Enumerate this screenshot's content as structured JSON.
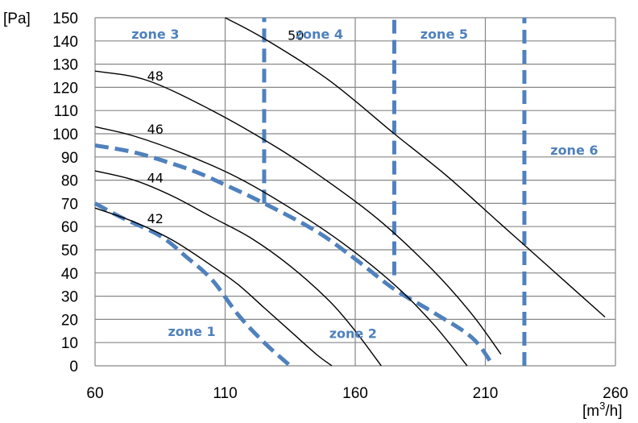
{
  "chart_data": {
    "type": "line",
    "title": "",
    "y_unit": "[Pa]",
    "x_unit": {
      "base": "[m",
      "sup": "3",
      "tail": "/h]"
    },
    "xlim": [
      60,
      260
    ],
    "ylim": [
      0,
      150
    ],
    "x_ticks": [
      60,
      110,
      160,
      210,
      260
    ],
    "y_ticks": [
      0,
      10,
      20,
      30,
      40,
      50,
      60,
      70,
      80,
      90,
      100,
      110,
      120,
      130,
      140,
      150
    ],
    "grid": true,
    "curve_color": "#000000",
    "zone_color": "#4f81bd",
    "series": [
      {
        "name": "42",
        "x": [
          60,
          75,
          90,
          105,
          115,
          125,
          135,
          145,
          151
        ],
        "y": [
          68,
          62,
          54,
          43,
          35,
          25,
          15,
          5,
          0
        ]
      },
      {
        "name": "44",
        "x": [
          60,
          75,
          90,
          105,
          120,
          135,
          150,
          160,
          170
        ],
        "y": [
          84,
          80,
          73,
          64,
          55,
          43,
          28,
          15,
          0
        ]
      },
      {
        "name": "46",
        "x": [
          60,
          75,
          95,
          115,
          135,
          155,
          175,
          190,
          203
        ],
        "y": [
          103,
          99,
          91,
          81,
          68,
          53,
          35,
          18,
          0
        ]
      },
      {
        "name": "48",
        "x": [
          60,
          80,
          105,
          130,
          150,
          170,
          190,
          205,
          216
        ],
        "y": [
          127,
          123,
          110,
          94,
          79,
          62,
          41,
          22,
          5
        ]
      },
      {
        "name": "50",
        "x": [
          110,
          125,
          150,
          175,
          195,
          215,
          235,
          256
        ],
        "y": [
          150,
          141,
          123,
          100,
          82,
          62,
          42,
          21
        ]
      }
    ],
    "boundaries": [
      {
        "name": "zone 1 boundary",
        "x": [
          60,
          70,
          85,
          95,
          105,
          115,
          125,
          135
        ],
        "y": [
          70,
          64,
          56,
          47,
          37,
          22,
          10,
          0
        ]
      },
      {
        "name": "zone 2 boundary",
        "x": [
          60,
          75,
          90,
          100,
          110,
          125,
          145,
          160,
          175,
          190,
          205,
          213
        ],
        "y": [
          95,
          92,
          87,
          83,
          78,
          70,
          58,
          46,
          33,
          23,
          12,
          0
        ]
      },
      {
        "name": "zone 3/4 boundary",
        "x": [
          125,
          125
        ],
        "y": [
          70,
          150
        ]
      },
      {
        "name": "zone 4/5 boundary",
        "x": [
          175,
          175
        ],
        "y": [
          39,
          150
        ]
      },
      {
        "name": "zone 5/6 boundary",
        "x": [
          225,
          225
        ],
        "y": [
          0,
          150
        ]
      }
    ],
    "curve_labels": [
      {
        "text": "50",
        "x": 134,
        "y": 142.5
      },
      {
        "text": "48",
        "x": 80,
        "y": 125
      },
      {
        "text": "46",
        "x": 80,
        "y": 102
      },
      {
        "text": "44",
        "x": 80,
        "y": 81
      },
      {
        "text": "42",
        "x": 80,
        "y": 63.5
      }
    ],
    "zone_labels": [
      {
        "text": "zone 1",
        "x": 88,
        "y": 15
      },
      {
        "text": "zone 2",
        "x": 150,
        "y": 14
      },
      {
        "text": "zone 3",
        "x": 74,
        "y": 143
      },
      {
        "text": "zone 4",
        "x": 137,
        "y": 143
      },
      {
        "text": "zone 5",
        "x": 185,
        "y": 143
      },
      {
        "text": "zone 6",
        "x": 235,
        "y": 93
      }
    ]
  }
}
